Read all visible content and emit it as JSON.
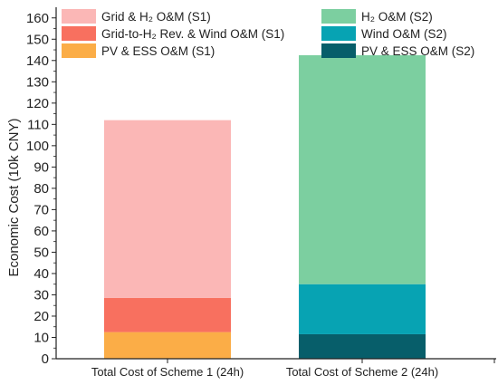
{
  "chart_data": {
    "type": "bar",
    "stacked": true,
    "title": "",
    "xlabel": "",
    "ylabel": "Economic Cost (10k CNY)",
    "ylim": [
      0,
      165
    ],
    "yticks": [
      0,
      10,
      20,
      30,
      40,
      50,
      60,
      70,
      80,
      90,
      100,
      110,
      120,
      130,
      140,
      150,
      160
    ],
    "grid": false,
    "legend_position": "top",
    "categories": [
      "Total Cost of Scheme 1 (24h)",
      "Total Cost of Scheme 2 (24h)"
    ],
    "series": [
      {
        "name": "PV & ESS O&M (S1)",
        "color": "#fbad47",
        "values": [
          12.5,
          0
        ]
      },
      {
        "name": "Grid-to-H₂ Rev. & Wind O&M (S1)",
        "color": "#f8705f",
        "values": [
          16,
          0
        ]
      },
      {
        "name": "Grid & H₂ O&M (S1)",
        "color": "#fbb7b6",
        "values": [
          83.5,
          0
        ]
      },
      {
        "name": "PV & ESS O&M (S2)",
        "color": "#075e6a",
        "values": [
          0,
          11.5
        ]
      },
      {
        "name": "Wind O&M (S2)",
        "color": "#07a3b3",
        "values": [
          0,
          23.5
        ]
      },
      {
        "name": "H₂ O&M (S2)",
        "color": "#7ccfa0",
        "values": [
          0,
          107.5
        ]
      }
    ],
    "legend_order": [
      "Grid & H₂ O&M (S1)",
      "H₂ O&M (S2)",
      "Grid-to-H₂ Rev. & Wind O&M (S1)",
      "Wind O&M (S2)",
      "PV & ESS O&M (S1)",
      "PV & ESS O&M (S2)"
    ]
  }
}
